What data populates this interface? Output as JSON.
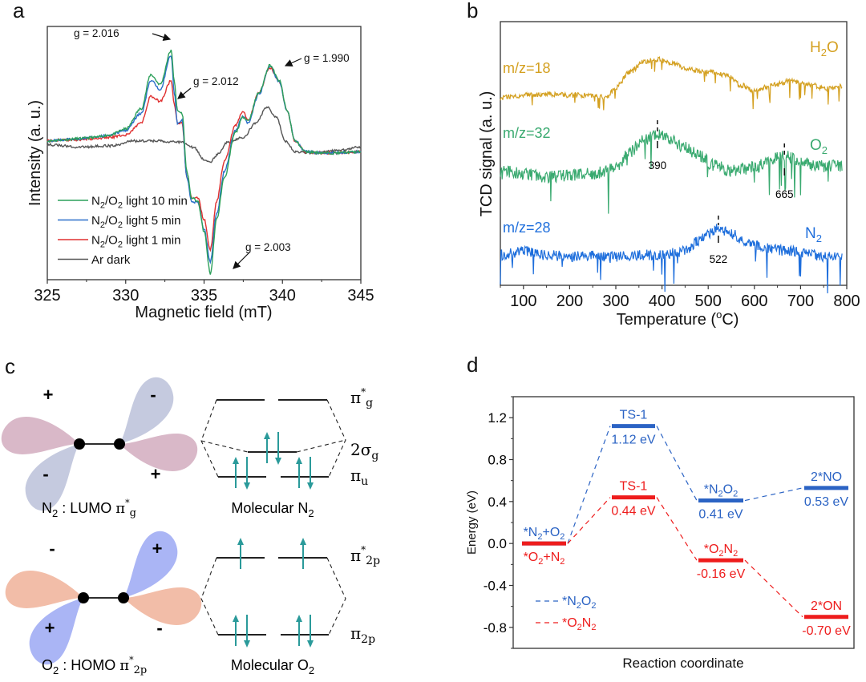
{
  "panels": {
    "a": "a",
    "b": "b",
    "c": "c",
    "d": "d"
  },
  "chart_data": [
    {
      "panel": "a",
      "type": "line",
      "title": "",
      "xlabel": "Magnetic field (mT)",
      "ylabel": "Intensity (a. u.)",
      "xlim": [
        325,
        345
      ],
      "ylim": [
        -1.1,
        1.0
      ],
      "xticks": [
        325,
        330,
        335,
        340,
        345
      ],
      "legend_position": "bottom-left",
      "series": [
        {
          "name": "N2/O2 light 10 min",
          "label_main": "N",
          "label_sub1": "2",
          "label_mid": "/O",
          "label_sub2": "2",
          "label_tail": " light 10 min",
          "color": "#2ca05a",
          "x": [
            325,
            326,
            327,
            328,
            329,
            330,
            331,
            331.6,
            332.2,
            332.9,
            333.1,
            333.3,
            333.6,
            333.9,
            334.2,
            334.6,
            335.0,
            335.4,
            335.8,
            336.3,
            337.0,
            337.5,
            337.8,
            338.5,
            339.2,
            339.8,
            340.3,
            340.8,
            341.5,
            343,
            345
          ],
          "y": [
            0.05,
            0.06,
            0.07,
            0.08,
            0.1,
            0.15,
            0.32,
            0.6,
            0.52,
            0.8,
            0.55,
            0.3,
            0.28,
            -0.2,
            -0.42,
            -0.45,
            -0.7,
            -1.05,
            -0.6,
            -0.25,
            0.12,
            0.25,
            0.22,
            0.45,
            0.68,
            0.55,
            0.3,
            0.05,
            -0.04,
            -0.05,
            -0.04
          ]
        },
        {
          "name": "N2/O2 light 5 min",
          "label_main": "N",
          "label_sub1": "2",
          "label_mid": "/O",
          "label_sub2": "2",
          "label_tail": " light 5 min",
          "color": "#2a6fc9",
          "x": [
            325,
            326,
            327,
            328,
            329,
            330,
            331,
            331.6,
            332.2,
            332.9,
            333.1,
            333.3,
            333.6,
            333.9,
            334.2,
            334.6,
            335.0,
            335.4,
            335.8,
            336.3,
            337.0,
            337.5,
            337.8,
            338.5,
            339.2,
            339.8,
            340.3,
            340.8,
            341.5,
            343,
            345
          ],
          "y": [
            0.05,
            0.06,
            0.07,
            0.08,
            0.1,
            0.14,
            0.28,
            0.55,
            0.48,
            0.76,
            0.45,
            0.2,
            0.22,
            -0.25,
            -0.45,
            -0.46,
            -0.68,
            -0.95,
            -0.55,
            -0.2,
            0.14,
            0.26,
            0.2,
            0.44,
            0.67,
            0.54,
            0.3,
            0.05,
            -0.04,
            -0.05,
            -0.04
          ]
        },
        {
          "name": "N2/O2 light 1 min",
          "label_main": "N",
          "label_sub1": "2",
          "label_mid": "/O",
          "label_sub2": "2",
          "label_tail": " light 1 min",
          "color": "#e03030",
          "x": [
            325,
            326,
            327,
            328,
            329,
            330,
            331,
            331.6,
            332.2,
            332.9,
            333.1,
            333.3,
            333.6,
            333.9,
            334.2,
            334.6,
            335.0,
            335.4,
            335.8,
            336.3,
            337.0,
            337.5,
            337.8,
            338.5,
            339.2,
            339.8,
            340.3,
            340.8,
            341.5,
            343,
            345
          ],
          "y": [
            0.05,
            0.06,
            0.06,
            0.07,
            0.08,
            0.1,
            0.2,
            0.42,
            0.38,
            0.55,
            0.35,
            0.2,
            0.2,
            -0.25,
            -0.42,
            -0.42,
            -0.6,
            -0.85,
            -0.45,
            -0.12,
            0.18,
            0.3,
            0.22,
            0.45,
            0.66,
            0.54,
            0.3,
            0.05,
            -0.04,
            -0.05,
            -0.04
          ]
        },
        {
          "name": "Ar dark",
          "label_main": "Ar dark",
          "label_sub1": "",
          "label_mid": "",
          "label_sub2": "",
          "label_tail": "",
          "color": "#555555",
          "x": [
            325,
            327,
            329,
            330.5,
            332,
            333.5,
            334.3,
            335.0,
            335.4,
            335.9,
            336.5,
            337.5,
            338.3,
            339.0,
            339.6,
            340.2,
            340.8,
            342,
            343.5,
            345
          ],
          "y": [
            0.02,
            0.0,
            0.01,
            0.05,
            0.05,
            0.04,
            0.0,
            -0.1,
            -0.12,
            -0.06,
            0.04,
            0.08,
            0.2,
            0.33,
            0.25,
            0.05,
            -0.04,
            -0.05,
            -0.03,
            0.0
          ]
        }
      ],
      "annotations": [
        {
          "text": "g = 2.016",
          "x": 331.2,
          "y": 0.92
        },
        {
          "text": "g = 2.012",
          "x": 334.4,
          "y": 0.7
        },
        {
          "text": "g = 1.990",
          "x": 340.6,
          "y": 0.74
        },
        {
          "text": "g = 2.003",
          "x": 339.3,
          "y": -0.75
        }
      ]
    },
    {
      "panel": "b",
      "type": "line",
      "title": "",
      "xlabel_main": "Temperature (",
      "xlabel_sup": "o",
      "xlabel_tail": "C)",
      "ylabel": "TCD signal (a. u.)",
      "xlim": [
        50,
        800
      ],
      "xticks": [
        100,
        200,
        300,
        400,
        500,
        600,
        700,
        800
      ],
      "series": [
        {
          "name": "m/z=18",
          "species_main": "H",
          "species_sub": "2",
          "species_tail": "O",
          "color": "#d4a020",
          "x": [
            50,
            100,
            150,
            200,
            250,
            280,
            300,
            330,
            360,
            390,
            420,
            460,
            500,
            540,
            570,
            600,
            640,
            680,
            720,
            760,
            790
          ],
          "y": [
            0.7,
            0.72,
            0.73,
            0.72,
            0.72,
            0.7,
            0.78,
            0.9,
            0.98,
            1.0,
            0.97,
            0.92,
            0.9,
            0.88,
            0.8,
            0.75,
            0.8,
            0.83,
            0.8,
            0.77,
            0.79
          ],
          "noise": 0.02
        },
        {
          "name": "m/z=32",
          "species_main": "O",
          "species_sub": "2",
          "species_tail": "",
          "color": "#3aaa70",
          "x": [
            50,
            100,
            150,
            200,
            250,
            300,
            330,
            360,
            390,
            420,
            450,
            480,
            510,
            550,
            600,
            640,
            665,
            700,
            740,
            790
          ],
          "y": [
            0.3,
            0.28,
            0.26,
            0.27,
            0.28,
            0.32,
            0.42,
            0.5,
            0.54,
            0.5,
            0.45,
            0.4,
            0.34,
            0.3,
            0.32,
            0.38,
            0.4,
            0.36,
            0.33,
            0.33
          ],
          "noise": 0.04
        },
        {
          "name": "m/z=28",
          "species_main": "N",
          "species_sub": "2",
          "species_tail": "",
          "color": "#1f6fdc",
          "x": [
            50,
            100,
            150,
            200,
            250,
            300,
            350,
            400,
            450,
            480,
            500,
            522,
            550,
            580,
            620,
            680,
            720,
            760,
            790
          ],
          "y": [
            0.0,
            0.02,
            0.0,
            -0.01,
            0.0,
            -0.01,
            0.0,
            0.0,
            0.02,
            0.08,
            0.12,
            0.15,
            0.12,
            0.08,
            0.04,
            0.02,
            0.0,
            -0.01,
            0.0
          ],
          "noise": 0.03
        }
      ],
      "peak_labels": [
        {
          "text": "390",
          "x": 390,
          "series": "m/z=32"
        },
        {
          "text": "665",
          "x": 665,
          "series": "m/z=32"
        },
        {
          "text": "522",
          "x": 522,
          "series": "m/z=28"
        }
      ]
    },
    {
      "panel": "d",
      "type": "line",
      "title": "",
      "xlabel": "Reaction coordinate",
      "ylabel": "Energy (eV)",
      "ylim": [
        -1.0,
        1.4
      ],
      "yticks": [
        -0.8,
        -0.4,
        0.0,
        0.4,
        0.8,
        1.2
      ],
      "ytick_labels": [
        "-0.8",
        "-0.4",
        "0.0",
        "0.4",
        "0.8",
        "1.2"
      ],
      "legend_position": "bottom-left",
      "series": [
        {
          "name": "*N2O2",
          "legend_main": "*N",
          "legend_sub1": "2",
          "legend_mid": "O",
          "legend_sub2": "2",
          "color": "#2b63c4",
          "levels": [
            {
              "stage": 0,
              "energy": 0.0,
              "label_above": "*N2+O2",
              "value_label": ""
            },
            {
              "stage": 1,
              "energy": 1.12,
              "label_above": "TS-1",
              "value_label": "1.12 eV"
            },
            {
              "stage": 2,
              "energy": 0.41,
              "label_above": "*N2O2",
              "value_label": "0.41 eV"
            },
            {
              "stage": 3,
              "energy": 0.53,
              "label_above": "2*NO",
              "value_label": "0.53 eV"
            }
          ]
        },
        {
          "name": "*O2N2",
          "legend_main": "*O",
          "legend_sub1": "2",
          "legend_mid": "N",
          "legend_sub2": "2",
          "color": "#ee1c1c",
          "levels": [
            {
              "stage": 0,
              "energy": 0.0,
              "label_below": "*O2+N2",
              "value_label": ""
            },
            {
              "stage": 1,
              "energy": 0.44,
              "label_above": "TS-1",
              "value_label": "0.44 eV"
            },
            {
              "stage": 2,
              "energy": -0.16,
              "label_above": "*O2N2",
              "value_label": "-0.16 eV"
            },
            {
              "stage": 3,
              "energy": -0.7,
              "label_above": "2*ON",
              "value_label": "-0.70 eV"
            }
          ]
        }
      ]
    }
  ],
  "diagram_c": {
    "orbitals": [
      {
        "molecule": "N2",
        "caption_main": "N",
        "caption_sub": "2",
        "caption_mid": " : LUMO ",
        "caption_pi": "π",
        "caption_pi_sub": "g",
        "caption_pi_sup": "*",
        "colors": {
          "plus": "#d9b8c8",
          "minus": "#c5cadf"
        },
        "signs": {
          "top_left": "+",
          "top_right": "-",
          "bottom_left": "-",
          "bottom_right": "+"
        }
      },
      {
        "molecule": "O2",
        "caption_main": "O",
        "caption_sub": "2",
        "caption_mid": " : HOMO ",
        "caption_pi": "π",
        "caption_pi_sub": "2p",
        "caption_pi_sup": "*",
        "colors": {
          "plus": "#aab5f5",
          "minus": "#f2bda8"
        },
        "signs": {
          "top_left": "-",
          "top_right": "+",
          "bottom_left": "+",
          "bottom_right": "-"
        }
      }
    ],
    "mo_diagrams": [
      {
        "title_main": "Molecular N",
        "title_sub": "2",
        "levels": [
          {
            "symbol": "π",
            "sub": "g",
            "sup": "*",
            "electrons": [
              0,
              0
            ]
          },
          {
            "symbol": "2σ",
            "sub": "g",
            "sup": "",
            "electrons": [
              2
            ]
          },
          {
            "symbol": "π",
            "sub": "u",
            "sup": "",
            "electrons": [
              2,
              2
            ]
          }
        ]
      },
      {
        "title_main": "Molecular O",
        "title_sub": "2",
        "levels": [
          {
            "symbol": "π",
            "sub": "2p",
            "sup": "*",
            "electrons": [
              1,
              1
            ]
          },
          {
            "symbol": "π",
            "sub": "2p",
            "sup": "",
            "electrons": [
              2,
              2
            ]
          }
        ]
      }
    ],
    "arrow_color": "#2a9a9a"
  }
}
